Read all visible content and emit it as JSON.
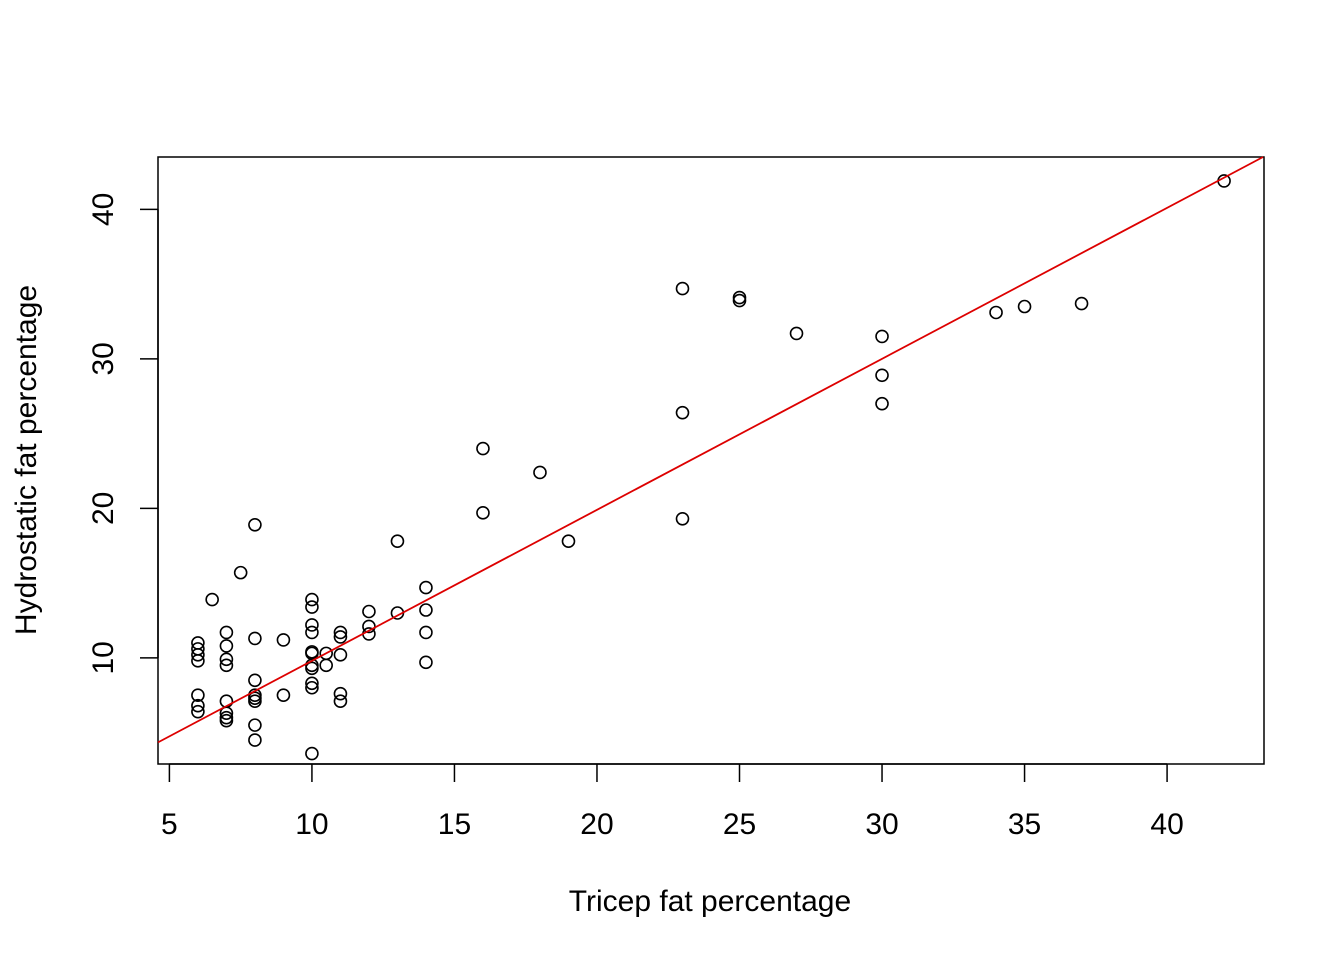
{
  "chart_data": {
    "type": "scatter",
    "title": "",
    "xlabel": "Tricep fat percentage",
    "ylabel": "Hydrostatic fat percentage",
    "xlim": [
      4.6,
      43.4
    ],
    "ylim": [
      2.9,
      43.5
    ],
    "xticks": [
      "5",
      "10",
      "15",
      "20",
      "25",
      "30",
      "35",
      "40"
    ],
    "yticks": [
      "10",
      "20",
      "30",
      "40"
    ],
    "grid": false,
    "legend": "none",
    "colors": {
      "points": "#000000",
      "fit_line": "#dd0000",
      "axes": "#000000"
    },
    "fit_line": {
      "intercept": -0.3,
      "slope": 1.01
    },
    "points": [
      [
        6,
        11.0
      ],
      [
        6,
        10.6
      ],
      [
        6,
        10.2
      ],
      [
        6,
        9.8
      ],
      [
        6,
        7.5
      ],
      [
        6,
        6.8
      ],
      [
        6,
        6.4
      ],
      [
        6.5,
        13.9
      ],
      [
        7,
        11.7
      ],
      [
        7,
        10.8
      ],
      [
        7,
        9.9
      ],
      [
        7,
        9.5
      ],
      [
        7,
        7.1
      ],
      [
        7,
        6.3
      ],
      [
        7,
        6.0
      ],
      [
        7,
        5.8
      ],
      [
        7.5,
        15.7
      ],
      [
        8,
        18.9
      ],
      [
        8,
        11.3
      ],
      [
        8,
        8.5
      ],
      [
        8,
        7.5
      ],
      [
        8,
        7.3
      ],
      [
        8,
        7.1
      ],
      [
        8,
        5.5
      ],
      [
        8,
        4.5
      ],
      [
        9,
        11.2
      ],
      [
        9,
        7.5
      ],
      [
        10,
        13.9
      ],
      [
        10,
        13.4
      ],
      [
        10,
        12.2
      ],
      [
        10,
        11.7
      ],
      [
        10,
        10.4
      ],
      [
        10,
        10.3
      ],
      [
        10,
        9.5
      ],
      [
        10,
        9.3
      ],
      [
        10,
        8.3
      ],
      [
        10,
        8.0
      ],
      [
        10,
        3.6
      ],
      [
        10.5,
        10.3
      ],
      [
        10.5,
        9.5
      ],
      [
        11,
        11.7
      ],
      [
        11,
        11.4
      ],
      [
        11,
        10.2
      ],
      [
        11,
        7.6
      ],
      [
        11,
        7.1
      ],
      [
        12,
        13.1
      ],
      [
        12,
        12.1
      ],
      [
        12,
        11.6
      ],
      [
        13,
        17.8
      ],
      [
        13,
        13.0
      ],
      [
        14,
        14.7
      ],
      [
        14,
        13.2
      ],
      [
        14,
        11.7
      ],
      [
        14,
        9.7
      ],
      [
        16,
        24.0
      ],
      [
        16,
        19.7
      ],
      [
        18,
        22.4
      ],
      [
        19,
        17.8
      ],
      [
        23,
        34.7
      ],
      [
        23,
        26.4
      ],
      [
        23,
        19.3
      ],
      [
        25,
        34.1
      ],
      [
        25,
        33.9
      ],
      [
        27,
        31.7
      ],
      [
        30,
        31.5
      ],
      [
        30,
        28.9
      ],
      [
        30,
        27.0
      ],
      [
        34,
        33.1
      ],
      [
        35,
        33.5
      ],
      [
        37,
        33.7
      ],
      [
        42,
        41.9
      ]
    ]
  }
}
